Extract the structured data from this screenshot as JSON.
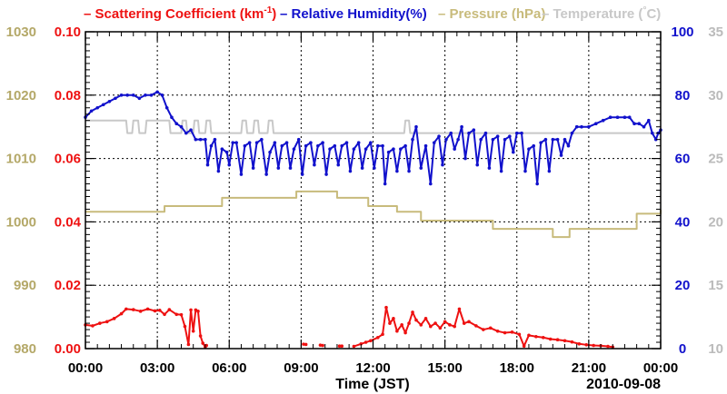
{
  "chart_data": {
    "type": "line",
    "title": "",
    "xlabel": "Time (JST)",
    "date_label": "2010-09-08",
    "x_range_hours": [
      0,
      24
    ],
    "x_tick_hours": [
      0,
      3,
      6,
      9,
      12,
      15,
      18,
      21,
      24
    ],
    "x_tick_labels": [
      "00:00",
      "03:00",
      "06:00",
      "09:00",
      "12:00",
      "15:00",
      "18:00",
      "21:00",
      "00:00"
    ],
    "grid": true,
    "legend": [
      {
        "key": "scat",
        "prefix": "– ",
        "text": "Scattering Coefficient (km",
        "sup": "-1",
        "suffix": ")",
        "color": "#ee1111"
      },
      {
        "key": "rh",
        "prefix": "– ",
        "text": "Relative Humidity(%)",
        "color": "#1111cc"
      },
      {
        "key": "press",
        "prefix": "– ",
        "text": "Pressure (hPa)",
        "color": "#c8bb7c"
      },
      {
        "key": "temp",
        "prefix": "– ",
        "text": "Temperature (",
        "degree_mark": "°",
        "suffix": "C)",
        "color": "#c8c8c8"
      }
    ],
    "axes": {
      "pressure": {
        "side": "left-outer",
        "range": [
          980,
          1030
        ],
        "ticks": [
          "980",
          "990",
          "1000",
          "1010",
          "1020",
          "1030"
        ],
        "color": "#b4a868"
      },
      "scattering": {
        "side": "left-inner",
        "range": [
          0,
          0.1
        ],
        "ticks": [
          "0.00",
          "0.02",
          "0.04",
          "0.06",
          "0.08",
          "0.10"
        ],
        "color": "#ee1111"
      },
      "humidity": {
        "side": "right-inner",
        "range": [
          0,
          100
        ],
        "ticks": [
          "0",
          "20",
          "40",
          "60",
          "80",
          "100"
        ],
        "color": "#1111cc"
      },
      "temperature": {
        "side": "right-outer",
        "range": [
          10,
          35
        ],
        "ticks": [
          "10",
          "15",
          "20",
          "25",
          "30",
          "35"
        ],
        "color": "#bbbbbb"
      }
    },
    "series": [
      {
        "name": "Pressure (hPa)",
        "axis": "pressure",
        "color": "#c8bb7c",
        "style": "step",
        "points": [
          [
            0,
            1001.6
          ],
          [
            3.3,
            1002.5
          ],
          [
            5.7,
            1003.8
          ],
          [
            8.8,
            1004.8
          ],
          [
            10.5,
            1003.8
          ],
          [
            11.8,
            1002.5
          ],
          [
            13.0,
            1001.6
          ],
          [
            14.0,
            1000.2
          ],
          [
            17.0,
            998.9
          ],
          [
            19.5,
            997.6
          ],
          [
            20.2,
            998.9
          ],
          [
            23.0,
            1001.3
          ],
          [
            24,
            1001.9
          ]
        ]
      },
      {
        "name": "Temperature",
        "axis": "temperature",
        "color": "#c8c8c8",
        "style": "line",
        "points": [
          [
            0,
            28
          ],
          [
            1.7,
            28
          ],
          [
            1.75,
            27
          ],
          [
            1.95,
            27
          ],
          [
            2.0,
            28
          ],
          [
            2.2,
            28
          ],
          [
            2.25,
            27
          ],
          [
            2.5,
            27
          ],
          [
            2.55,
            28
          ],
          [
            3.5,
            28
          ],
          [
            3.55,
            27
          ],
          [
            4.0,
            27
          ],
          [
            4.05,
            28
          ],
          [
            4.2,
            28
          ],
          [
            4.25,
            27
          ],
          [
            4.5,
            27
          ],
          [
            4.55,
            28
          ],
          [
            4.7,
            28
          ],
          [
            4.75,
            27
          ],
          [
            5.0,
            27
          ],
          [
            5.05,
            28
          ],
          [
            5.2,
            28
          ],
          [
            5.25,
            27
          ],
          [
            6.5,
            27
          ],
          [
            6.55,
            28
          ],
          [
            6.7,
            28
          ],
          [
            6.75,
            27
          ],
          [
            7.0,
            27
          ],
          [
            7.05,
            28
          ],
          [
            7.2,
            28
          ],
          [
            7.25,
            27
          ],
          [
            7.6,
            27
          ],
          [
            7.65,
            28
          ],
          [
            7.8,
            28
          ],
          [
            7.85,
            27
          ],
          [
            13.3,
            27
          ],
          [
            13.35,
            28
          ],
          [
            13.5,
            28
          ],
          [
            13.55,
            27
          ],
          [
            24,
            27
          ]
        ]
      },
      {
        "name": "Relative Humidity (%)",
        "axis": "humidity",
        "color": "#1111cc",
        "style": "dots",
        "points": [
          [
            0,
            73
          ],
          [
            0.25,
            75
          ],
          [
            0.5,
            76
          ],
          [
            0.75,
            77
          ],
          [
            1.0,
            78
          ],
          [
            1.25,
            79
          ],
          [
            1.5,
            80
          ],
          [
            1.75,
            80
          ],
          [
            2.0,
            80
          ],
          [
            2.25,
            79
          ],
          [
            2.5,
            80
          ],
          [
            2.75,
            80
          ],
          [
            3.0,
            81
          ],
          [
            3.2,
            80
          ],
          [
            3.4,
            76
          ],
          [
            3.6,
            73
          ],
          [
            3.8,
            71
          ],
          [
            4.0,
            70
          ],
          [
            4.2,
            68
          ],
          [
            4.4,
            69
          ],
          [
            4.6,
            66
          ],
          [
            4.8,
            66
          ],
          [
            5.0,
            66
          ],
          [
            5.1,
            58
          ],
          [
            5.25,
            64
          ],
          [
            5.4,
            66
          ],
          [
            5.55,
            56
          ],
          [
            5.7,
            63
          ],
          [
            5.9,
            62
          ],
          [
            6.0,
            58
          ],
          [
            6.15,
            65
          ],
          [
            6.3,
            65
          ],
          [
            6.5,
            55
          ],
          [
            6.65,
            64
          ],
          [
            6.85,
            65
          ],
          [
            7.0,
            57
          ],
          [
            7.15,
            65
          ],
          [
            7.35,
            66
          ],
          [
            7.55,
            55
          ],
          [
            7.7,
            62
          ],
          [
            7.9,
            65
          ],
          [
            8.05,
            57
          ],
          [
            8.2,
            64
          ],
          [
            8.4,
            65
          ],
          [
            8.55,
            57
          ],
          [
            8.7,
            63
          ],
          [
            8.9,
            66
          ],
          [
            9.05,
            55
          ],
          [
            9.2,
            64
          ],
          [
            9.4,
            65
          ],
          [
            9.55,
            58
          ],
          [
            9.7,
            64
          ],
          [
            9.9,
            65
          ],
          [
            10.05,
            55
          ],
          [
            10.2,
            63
          ],
          [
            10.4,
            64
          ],
          [
            10.55,
            58
          ],
          [
            10.7,
            64
          ],
          [
            10.9,
            65
          ],
          [
            11.05,
            56
          ],
          [
            11.2,
            63
          ],
          [
            11.4,
            65
          ],
          [
            11.55,
            57
          ],
          [
            11.7,
            63
          ],
          [
            11.9,
            65
          ],
          [
            12.05,
            57
          ],
          [
            12.2,
            64
          ],
          [
            12.4,
            64
          ],
          [
            12.5,
            52
          ],
          [
            12.65,
            62
          ],
          [
            12.85,
            63
          ],
          [
            13.0,
            56
          ],
          [
            13.15,
            63
          ],
          [
            13.35,
            64
          ],
          [
            13.5,
            56
          ],
          [
            13.65,
            66
          ],
          [
            13.8,
            70
          ],
          [
            14.0,
            57
          ],
          [
            14.2,
            64
          ],
          [
            14.4,
            52
          ],
          [
            14.55,
            65
          ],
          [
            14.75,
            67
          ],
          [
            14.9,
            58
          ],
          [
            15.05,
            66
          ],
          [
            15.25,
            68
          ],
          [
            15.4,
            63
          ],
          [
            15.55,
            66
          ],
          [
            15.7,
            70
          ],
          [
            15.85,
            60
          ],
          [
            16.0,
            68
          ],
          [
            16.2,
            69
          ],
          [
            16.35,
            58
          ],
          [
            16.5,
            66
          ],
          [
            16.7,
            68
          ],
          [
            16.85,
            57
          ],
          [
            17.0,
            66
          ],
          [
            17.2,
            67
          ],
          [
            17.35,
            56
          ],
          [
            17.5,
            66
          ],
          [
            17.7,
            67
          ],
          [
            17.85,
            62
          ],
          [
            18.0,
            68
          ],
          [
            18.2,
            68
          ],
          [
            18.35,
            56
          ],
          [
            18.5,
            63
          ],
          [
            18.7,
            64
          ],
          [
            18.85,
            52
          ],
          [
            19.0,
            65
          ],
          [
            19.2,
            66
          ],
          [
            19.35,
            56
          ],
          [
            19.5,
            66
          ],
          [
            19.7,
            66
          ],
          [
            19.85,
            61
          ],
          [
            20.0,
            66
          ],
          [
            20.15,
            64
          ],
          [
            20.3,
            68
          ],
          [
            20.5,
            70
          ],
          [
            20.7,
            70
          ],
          [
            21.0,
            70
          ],
          [
            21.3,
            71
          ],
          [
            21.6,
            72
          ],
          [
            21.9,
            73
          ],
          [
            22.2,
            73
          ],
          [
            22.5,
            73
          ],
          [
            22.7,
            73
          ],
          [
            22.9,
            71
          ],
          [
            23.1,
            71
          ],
          [
            23.3,
            70
          ],
          [
            23.5,
            72
          ],
          [
            23.65,
            68
          ],
          [
            23.8,
            66
          ],
          [
            23.9,
            68
          ],
          [
            24,
            69
          ]
        ]
      },
      {
        "name": "Scattering Coefficient (km-1)",
        "axis": "scattering",
        "color": "#ee1111",
        "style": "dots",
        "segments": [
          [
            [
              0,
              0.0075
            ],
            [
              0.3,
              0.0072
            ],
            [
              0.6,
              0.008
            ],
            [
              0.9,
              0.0085
            ],
            [
              1.2,
              0.0095
            ],
            [
              1.5,
              0.011
            ],
            [
              1.7,
              0.0125
            ],
            [
              2.0,
              0.0123
            ],
            [
              2.3,
              0.0118
            ],
            [
              2.6,
              0.0125
            ],
            [
              2.9,
              0.0119
            ],
            [
              3.1,
              0.0121
            ],
            [
              3.3,
              0.0108
            ],
            [
              3.5,
              0.0123
            ],
            [
              3.8,
              0.0108
            ],
            [
              4.0,
              0.0107
            ],
            [
              4.15,
              0.007
            ],
            [
              4.3,
              0.0013
            ],
            [
              4.4,
              0.0122
            ],
            [
              4.5,
              0.0055
            ],
            [
              4.6,
              0.0122
            ],
            [
              4.7,
              0.0118
            ],
            [
              4.8,
              0.004
            ],
            [
              4.9,
              0.0017
            ],
            [
              5.0,
              0.0005
            ],
            [
              5.05,
              0.001
            ]
          ],
          [
            [
              9.1,
              0.0014
            ],
            [
              9.2,
              0.0013
            ]
          ],
          [
            [
              9.8,
              0.0011
            ],
            [
              9.9,
              0.001
            ]
          ],
          [
            [
              10.6,
              0.0008
            ],
            [
              10.7,
              0.0008
            ]
          ],
          [
            [
              11.2,
              0.0007
            ],
            [
              11.5,
              0.0015
            ],
            [
              11.7,
              0.002
            ],
            [
              11.9,
              0.0025
            ],
            [
              12.2,
              0.0035
            ],
            [
              12.4,
              0.0045
            ],
            [
              12.55,
              0.013
            ],
            [
              12.7,
              0.008
            ],
            [
              12.85,
              0.0095
            ],
            [
              13.0,
              0.0055
            ],
            [
              13.2,
              0.0075
            ],
            [
              13.35,
              0.005
            ],
            [
              13.5,
              0.008
            ],
            [
              13.65,
              0.0115
            ],
            [
              13.8,
              0.009
            ],
            [
              14.0,
              0.0075
            ],
            [
              14.2,
              0.0095
            ],
            [
              14.4,
              0.007
            ],
            [
              14.6,
              0.008
            ],
            [
              14.8,
              0.0065
            ],
            [
              15.0,
              0.0085
            ],
            [
              15.2,
              0.0075
            ],
            [
              15.4,
              0.007
            ],
            [
              15.6,
              0.0125
            ],
            [
              15.8,
              0.008
            ],
            [
              16.0,
              0.0085
            ],
            [
              16.3,
              0.0072
            ],
            [
              16.6,
              0.006
            ],
            [
              16.9,
              0.0065
            ],
            [
              17.2,
              0.0055
            ],
            [
              17.5,
              0.005
            ],
            [
              17.8,
              0.0052
            ],
            [
              18.1,
              0.0045
            ],
            [
              18.3,
              0.0008
            ],
            [
              18.5,
              0.0042
            ],
            [
              18.8,
              0.0038
            ],
            [
              19.1,
              0.0035
            ],
            [
              19.4,
              0.003
            ],
            [
              19.7,
              0.0028
            ],
            [
              20.0,
              0.0025
            ],
            [
              20.3,
              0.0021
            ],
            [
              20.6,
              0.0015
            ],
            [
              20.9,
              0.0012
            ],
            [
              21.2,
              0.001
            ],
            [
              21.5,
              0.0009
            ],
            [
              21.8,
              0.0007
            ],
            [
              22.0,
              0.0005
            ]
          ]
        ]
      }
    ]
  }
}
